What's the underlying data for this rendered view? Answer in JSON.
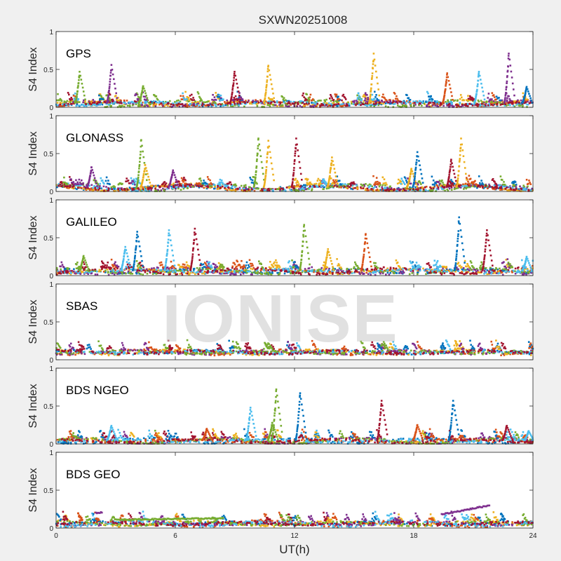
{
  "chart_data": {
    "type": "scatter",
    "title": "SXWN20251008",
    "xlabel": "UT(h)",
    "ylabel": "S4 Index",
    "xlim": [
      0,
      24
    ],
    "ylim": [
      0,
      1
    ],
    "xticks": [
      "0",
      "6",
      "12",
      "18",
      "24"
    ],
    "yticks": [
      "0",
      "0.5",
      "1"
    ],
    "watermark": "IONISE",
    "series_colors": [
      "#0072BD",
      "#D95319",
      "#EDB120",
      "#7E2F8E",
      "#77AC30",
      "#4DBEEE",
      "#A2142F"
    ],
    "panels": [
      {
        "name": "GPS",
        "baseline": 0.06,
        "spikes": [
          {
            "x": 1.1,
            "y": 0.47,
            "color": 4
          },
          {
            "x": 2.7,
            "y": 0.56,
            "color": 3
          },
          {
            "x": 4.3,
            "y": 0.28,
            "color": 4
          },
          {
            "x": 8.9,
            "y": 0.47,
            "color": 6
          },
          {
            "x": 10.6,
            "y": 0.55,
            "color": 2
          },
          {
            "x": 15.9,
            "y": 0.71,
            "color": 2
          },
          {
            "x": 19.6,
            "y": 0.45,
            "color": 1
          },
          {
            "x": 21.2,
            "y": 0.47,
            "color": 5
          },
          {
            "x": 22.7,
            "y": 0.71,
            "color": 3
          },
          {
            "x": 23.6,
            "y": 0.27,
            "color": 0
          }
        ]
      },
      {
        "name": "GLONASS",
        "baseline": 0.06,
        "spikes": [
          {
            "x": 1.7,
            "y": 0.32,
            "color": 3
          },
          {
            "x": 4.2,
            "y": 0.68,
            "color": 4
          },
          {
            "x": 4.4,
            "y": 0.35,
            "color": 2
          },
          {
            "x": 5.8,
            "y": 0.28,
            "color": 3
          },
          {
            "x": 10.1,
            "y": 0.7,
            "color": 4
          },
          {
            "x": 10.6,
            "y": 0.67,
            "color": 2
          },
          {
            "x": 12.0,
            "y": 0.7,
            "color": 6
          },
          {
            "x": 13.8,
            "y": 0.45,
            "color": 2
          },
          {
            "x": 17.8,
            "y": 0.3,
            "color": 2
          },
          {
            "x": 18.1,
            "y": 0.52,
            "color": 0
          },
          {
            "x": 19.8,
            "y": 0.42,
            "color": 6
          },
          {
            "x": 20.3,
            "y": 0.7,
            "color": 2
          }
        ]
      },
      {
        "name": "GALILEO",
        "baseline": 0.07,
        "spikes": [
          {
            "x": 1.3,
            "y": 0.26,
            "color": 4
          },
          {
            "x": 3.4,
            "y": 0.38,
            "color": 5
          },
          {
            "x": 4.0,
            "y": 0.58,
            "color": 0
          },
          {
            "x": 5.6,
            "y": 0.6,
            "color": 5
          },
          {
            "x": 6.9,
            "y": 0.62,
            "color": 6
          },
          {
            "x": 12.4,
            "y": 0.67,
            "color": 4
          },
          {
            "x": 13.6,
            "y": 0.35,
            "color": 2
          },
          {
            "x": 15.5,
            "y": 0.55,
            "color": 1
          },
          {
            "x": 20.2,
            "y": 0.77,
            "color": 0
          },
          {
            "x": 21.6,
            "y": 0.6,
            "color": 6
          },
          {
            "x": 23.6,
            "y": 0.25,
            "color": 5
          }
        ]
      },
      {
        "name": "SBAS",
        "baseline": 0.11,
        "spikes": []
      },
      {
        "name": "BDS NGEO",
        "baseline": 0.05,
        "spikes": [
          {
            "x": 2.7,
            "y": 0.24,
            "color": 5
          },
          {
            "x": 7.5,
            "y": 0.2,
            "color": 1
          },
          {
            "x": 9.7,
            "y": 0.48,
            "color": 5
          },
          {
            "x": 10.8,
            "y": 0.28,
            "color": 4
          },
          {
            "x": 11.0,
            "y": 0.72,
            "color": 4
          },
          {
            "x": 12.2,
            "y": 0.67,
            "color": 0
          },
          {
            "x": 16.3,
            "y": 0.57,
            "color": 6
          },
          {
            "x": 18.1,
            "y": 0.25,
            "color": 1
          },
          {
            "x": 19.9,
            "y": 0.57,
            "color": 0
          },
          {
            "x": 22.6,
            "y": 0.24,
            "color": 6
          },
          {
            "x": 23.7,
            "y": 0.17,
            "color": 5
          }
        ]
      },
      {
        "name": "BDS GEO",
        "baseline": 0.07,
        "spikes": [],
        "tracks": [
          {
            "x0": 2.0,
            "x1": 2.3,
            "y0": 0.2,
            "y1": 0.21,
            "color": 3
          },
          {
            "x0": 3.0,
            "x1": 8.4,
            "y0": 0.11,
            "y1": 0.13,
            "color": 4
          },
          {
            "x0": 19.4,
            "x1": 21.8,
            "y0": 0.18,
            "y1": 0.3,
            "color": 3
          }
        ]
      }
    ]
  }
}
